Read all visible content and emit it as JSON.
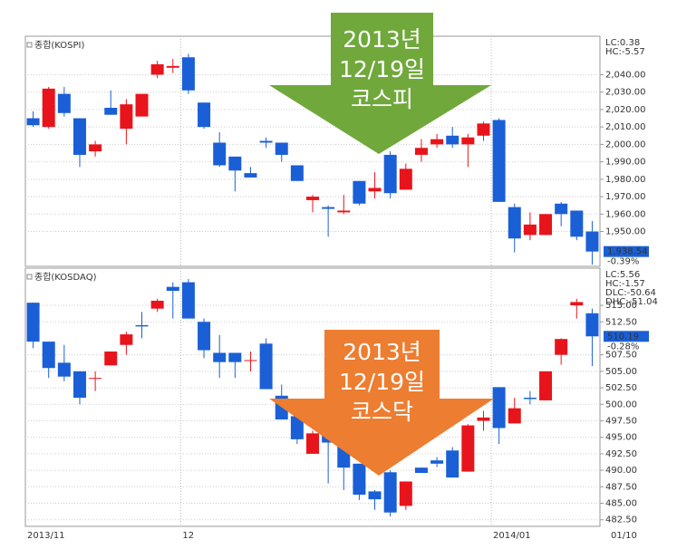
{
  "chart_data": [
    {
      "type": "candlestick",
      "title": "종합(KOSPI)",
      "up_color": "#e8141b",
      "down_color": "#1a5fd6",
      "open": [
        2015,
        2010,
        2029,
        2015,
        1996,
        2021,
        2009,
        2016,
        2040,
        2044,
        2050,
        2024,
        2001,
        1993,
        1983.5,
        2002,
        2001,
        1988,
        1968,
        1964,
        1961,
        1979,
        1973,
        1994,
        1974,
        1994,
        2000,
        2005,
        2000,
        2005,
        2014,
        1964,
        1948,
        1948,
        1966,
        1962,
        1950
      ],
      "high": [
        2019,
        2033,
        2033,
        2015,
        2002,
        2031,
        2026,
        2029,
        2048,
        2049,
        2052,
        2024,
        2007,
        1993,
        1987,
        2004,
        2001,
        1988,
        1971,
        1965,
        1971,
        1979,
        1984,
        1996,
        1989,
        2003,
        2006,
        2010,
        2006,
        2013,
        2015,
        1966,
        1961,
        1960,
        1967,
        1962,
        1956
      ],
      "low": [
        2010,
        2009,
        2016,
        1987,
        1993,
        2017,
        2000,
        2016,
        2038,
        2041,
        2029,
        2009,
        1987,
        1973,
        1981,
        1998,
        1990,
        1979,
        1961,
        1947,
        1960,
        1965,
        1969,
        1969,
        1974,
        1990,
        1998,
        1998,
        1987,
        2002,
        1967,
        1938,
        1945,
        1948,
        1953,
        1945,
        1931
      ],
      "close": [
        2011,
        2032,
        2018,
        1994,
        2000,
        2017,
        2023,
        2029,
        2046,
        2045,
        2031,
        2010,
        1988,
        1985,
        1981,
        2001,
        1994,
        1979,
        1970,
        1963,
        1962,
        1966,
        1975,
        1972,
        1986,
        1998,
        2003,
        2000,
        2004,
        2012,
        1967,
        1946,
        1954,
        1960,
        1960,
        1947,
        1938.5
      ],
      "ylim": [
        1930,
        2060
      ],
      "yticks": [
        {
          "value": 1950,
          "label": "1,950.00"
        },
        {
          "value": 1960,
          "label": "1,960.00"
        },
        {
          "value": 1970,
          "label": "1,970.00"
        },
        {
          "value": 1980,
          "label": "1,980.00"
        },
        {
          "value": 1990,
          "label": "1,990.00"
        },
        {
          "value": 2000,
          "label": "2,000.00"
        },
        {
          "value": 2010,
          "label": "2,010.00"
        },
        {
          "value": 2020,
          "label": "2,020.00"
        },
        {
          "value": 2030,
          "label": "2,030.00"
        },
        {
          "value": 2040,
          "label": "2,040.00"
        }
      ],
      "indicators": [
        {
          "text": "LC:0.38",
          "color": "#e8141b"
        },
        {
          "text": "HC:-5.57",
          "color": "#1a5fd6"
        }
      ],
      "last_price": "1,938.54",
      "change": "-0.39%",
      "annotation": [
        "2013년",
        "12/19일",
        "코스피"
      ]
    },
    {
      "type": "candlestick",
      "title": "종합(KOSDAQ)",
      "up_color": "#e8141b",
      "down_color": "#1a5fd6",
      "open": [
        515.4,
        509.5,
        506.3,
        505,
        503.9,
        505.9,
        509,
        512,
        514.5,
        517.8,
        518.5,
        512.5,
        507.8,
        507.8,
        506.6,
        509.2,
        501.3,
        498.2,
        492.5,
        496.2,
        494.4,
        491,
        486.8,
        489.7,
        484.6,
        490.4,
        491.5,
        493,
        489.8,
        497.5,
        502.6,
        497.1,
        501,
        500.6,
        507.5,
        515,
        513.8
      ],
      "high": [
        515.4,
        509.5,
        509,
        505,
        505,
        508,
        511,
        514,
        516,
        518.5,
        519,
        513,
        510.5,
        507.8,
        508,
        510,
        503,
        499.5,
        496,
        496.2,
        494.4,
        491,
        487,
        490,
        488.3,
        490.4,
        492,
        493.5,
        497,
        499,
        502.6,
        501,
        502,
        505,
        510,
        516,
        514.5
      ],
      "low": [
        508.5,
        504,
        503.5,
        500,
        502,
        505.9,
        507.5,
        510,
        514,
        513,
        513,
        507,
        504,
        504,
        505,
        502.3,
        497.7,
        494,
        492.5,
        488,
        487,
        485.5,
        484,
        483,
        484,
        489.6,
        490.5,
        488.9,
        489.8,
        496,
        494,
        497.1,
        500,
        500.6,
        506,
        513,
        505.8
      ],
      "close": [
        509.5,
        505.5,
        504.2,
        501,
        504,
        508,
        510.6,
        511.8,
        515.7,
        517.2,
        513,
        508.2,
        506.4,
        506.4,
        506.7,
        502.3,
        497.7,
        494.7,
        495.6,
        494.2,
        490.4,
        486.3,
        485.6,
        483.6,
        488.3,
        489.6,
        491,
        488.9,
        496.8,
        498,
        496.4,
        499.4,
        500.8,
        505,
        509.9,
        515.5,
        510.3
      ],
      "ylim": [
        481.5,
        520.5
      ],
      "yticks": [
        {
          "value": 482.5,
          "label": "482.50"
        },
        {
          "value": 485,
          "label": "485.00"
        },
        {
          "value": 487.5,
          "label": "487.50"
        },
        {
          "value": 490,
          "label": "490.00"
        },
        {
          "value": 492.5,
          "label": "492.50"
        },
        {
          "value": 495,
          "label": "495.00"
        },
        {
          "value": 497.5,
          "label": "497.50"
        },
        {
          "value": 500,
          "label": "500.00"
        },
        {
          "value": 502.5,
          "label": "502.50"
        },
        {
          "value": 505,
          "label": "505.00"
        },
        {
          "value": 507.5,
          "label": "507.50"
        },
        {
          "value": 512.5,
          "label": "512.50"
        },
        {
          "value": 515,
          "label": "515.00"
        }
      ],
      "indicators": [
        {
          "text": "LC:5.56",
          "color": "#e8141b"
        },
        {
          "text": "HC:-1.57",
          "color": "#1a5fd6"
        },
        {
          "text": "DLC:-50.64",
          "color": "#e8141b"
        },
        {
          "text": "DHC:-51.04",
          "color": "#1a5fd6"
        }
      ],
      "last_price": "510.19",
      "change": "-0.28%",
      "annotation": [
        "2013년",
        "12/19일",
        "코스닥"
      ],
      "categories": [
        "2013/11",
        null,
        null,
        null,
        null,
        null,
        null,
        null,
        null,
        null,
        "12",
        null,
        null,
        null,
        null,
        null,
        null,
        null,
        null,
        null,
        null,
        null,
        null,
        null,
        null,
        null,
        null,
        null,
        null,
        null,
        "2014/01",
        null,
        null,
        null,
        null,
        null,
        null
      ],
      "end_label": "01/10"
    }
  ]
}
